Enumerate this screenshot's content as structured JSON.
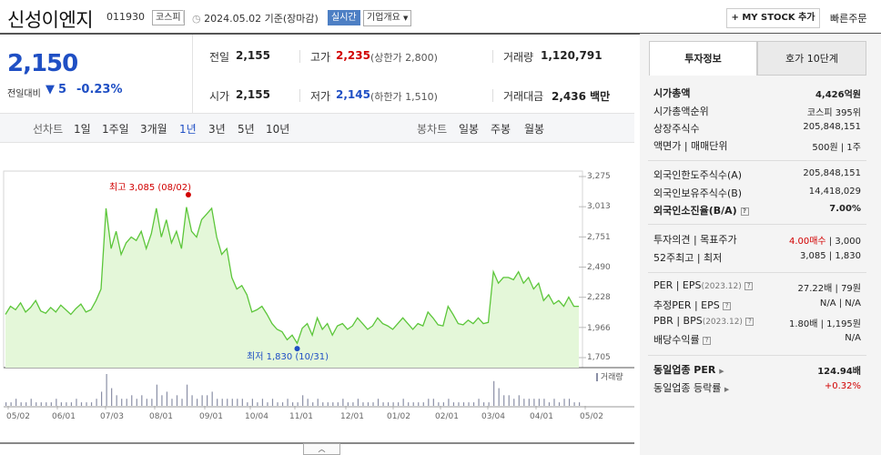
{
  "header": {
    "name": "신성이엔지",
    "code": "011930",
    "market": "코스피",
    "date": "2024.05.02 기준(장마감)",
    "realtime": "실시간",
    "company_overview": "기업개요",
    "mystock": "+ MY STOCK 추가",
    "quick_order": "빠른주문"
  },
  "price": {
    "current": "2,150",
    "change_label": "전일대비",
    "change_arrow": "▼",
    "change": "5",
    "change_pct": "-0.23%"
  },
  "quote": {
    "prev_label": "전일",
    "prev": "2,155",
    "high_label": "고가",
    "high": "2,235",
    "upper_limit": "(상한가 2,800)",
    "volume_label": "거래량",
    "volume": "1,120,791",
    "open_label": "시가",
    "open": "2,155",
    "low_label": "저가",
    "low": "2,145",
    "lower_limit": "(하한가 1,510)",
    "amount_label": "거래대금",
    "amount": "2,436 백만"
  },
  "range_bar": {
    "line_label": "선차트",
    "line_ranges": [
      "1일",
      "1주일",
      "3개월",
      "1년",
      "3년",
      "5년",
      "10년"
    ],
    "selected": "1년",
    "candle_label": "봉차트",
    "candle_ranges": [
      "일봉",
      "주봉",
      "월봉"
    ]
  },
  "chart_data": {
    "type": "area",
    "y_ticks": [
      "3,275",
      "3,013",
      "2,751",
      "2,490",
      "2,228",
      "1,966",
      "1,705"
    ],
    "ylim": [
      1705,
      3275
    ],
    "x_ticks": [
      "05/02",
      "06/01",
      "07/03",
      "08/01",
      "09/01",
      "10/04",
      "11/01",
      "12/01",
      "01/02",
      "02/01",
      "03/04",
      "04/01",
      "05/02"
    ],
    "series": [
      {
        "values": [
          2080,
          2150,
          2120,
          2180,
          2100,
          2140,
          2200,
          2110,
          2090,
          2140,
          2100,
          2160,
          2120,
          2080,
          2130,
          2170,
          2100,
          2120,
          2200,
          2300,
          3000,
          2650,
          2800,
          2600,
          2700,
          2750,
          2720,
          2800,
          2650,
          2780,
          3000,
          2750,
          2900,
          2700,
          2800,
          2650,
          3010,
          2800,
          2750,
          2900,
          2950,
          3000,
          2750,
          2600,
          2650,
          2400,
          2300,
          2330,
          2250,
          2100,
          2120,
          2150,
          2080,
          2000,
          1950,
          1930,
          1860,
          1900,
          1830,
          1960,
          2000,
          1900,
          2050,
          1950,
          2000,
          1900,
          1980,
          2000,
          1950,
          1980,
          2050,
          2000,
          1950,
          1980,
          2050,
          2000,
          1980,
          1950,
          2000,
          2050,
          2000,
          1950,
          2000,
          1980,
          2100,
          2050,
          1990,
          1980,
          2150,
          2080,
          2000,
          1990,
          2030,
          2000,
          2050,
          2000,
          2010,
          2450,
          2350,
          2400,
          2400,
          2380,
          2450,
          2350,
          2400,
          2300,
          2350,
          2200,
          2250,
          2170,
          2200,
          2150,
          2230,
          2150,
          2150
        ],
        "color": "#5cc63a"
      }
    ],
    "annotations": [
      {
        "label": "최고 3,085 (08/02)",
        "value": 3085,
        "color": "#d10000"
      },
      {
        "label": "최저 1,830 (10/31)",
        "value": 1830,
        "color": "#1f4fc4"
      }
    ],
    "volume_label": "거래량",
    "volume_series": [
      {
        "values": [
          1,
          1,
          2,
          1,
          1,
          2,
          1,
          1,
          1,
          1,
          2,
          1,
          1,
          1,
          2,
          1,
          1,
          1,
          2,
          4,
          9,
          5,
          3,
          2,
          2,
          3,
          2,
          3,
          2,
          2,
          6,
          3,
          4,
          2,
          3,
          2,
          6,
          3,
          2,
          3,
          3,
          4,
          2,
          2,
          2,
          2,
          2,
          2,
          1,
          2,
          1,
          2,
          1,
          2,
          1,
          1,
          2,
          1,
          1,
          3,
          2,
          1,
          2,
          1,
          1,
          1,
          1,
          2,
          1,
          1,
          2,
          1,
          1,
          1,
          2,
          1,
          1,
          1,
          1,
          2,
          1,
          1,
          1,
          1,
          2,
          2,
          1,
          1,
          2,
          1,
          1,
          1,
          1,
          1,
          2,
          1,
          1,
          7,
          5,
          3,
          3,
          2,
          3,
          2,
          2,
          2,
          2,
          2,
          1,
          2,
          1,
          2,
          2,
          1,
          1
        ],
        "color": "#8a8fa6"
      }
    ]
  },
  "side": {
    "tab1": "투자정보",
    "tab2": "호가 10단계",
    "sec1": [
      {
        "label": "시가총액",
        "value": "4,426억원",
        "bold": true
      },
      {
        "label": "시가총액순위",
        "value": "코스피 395위"
      },
      {
        "label": "상장주식수",
        "value": "205,848,151"
      },
      {
        "label": "액면가 | 매매단위",
        "value": "500원 | 1주"
      }
    ],
    "sec2": [
      {
        "label": "외국인한도주식수(A)",
        "value": "205,848,151"
      },
      {
        "label": "외국인보유주식수(B)",
        "value": "14,418,029"
      },
      {
        "label": "외국인소진율(B/A)",
        "value": "7.00%",
        "bold": true
      }
    ],
    "sec3": [
      {
        "label": "투자의견 | 목표주가",
        "value_a": "4.00매수",
        "value_b": "| 3,000"
      },
      {
        "label": "52주최고 | 최저",
        "value": "3,085 | 1,830"
      }
    ],
    "sec4": [
      {
        "label": "PER | EPS",
        "sub": "(2023.12)",
        "value": "27.22배 | 79원"
      },
      {
        "label": "추정PER | EPS",
        "value": "N/A | N/A"
      },
      {
        "label": "PBR | BPS",
        "sub": "(2023.12)",
        "value": "1.80배 | 1,195원"
      },
      {
        "label": "배당수익률",
        "value": "N/A"
      }
    ],
    "sec5": [
      {
        "label": "동일업종 PER",
        "value": "124.94배",
        "bold": true
      },
      {
        "label": "동일업종 등락률",
        "value": "+0.32%"
      }
    ],
    "toggle": "︿"
  }
}
